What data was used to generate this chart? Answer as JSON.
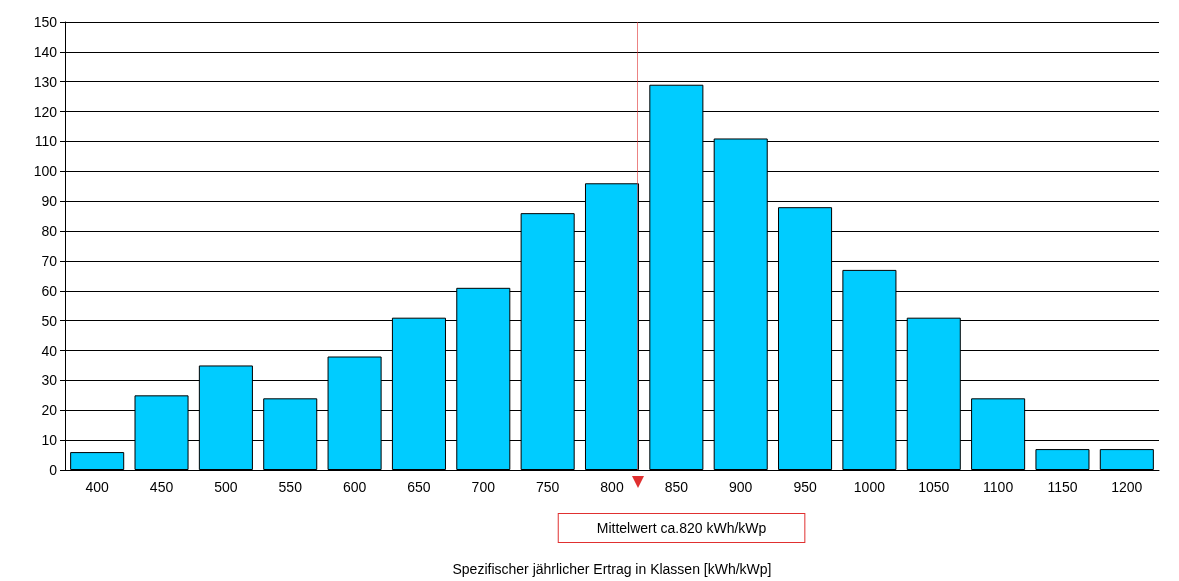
{
  "chart_data": {
    "type": "bar",
    "xlabel": "Spezifischer jährlicher Ertrag in Klassen [kWh/kWp]",
    "x": [
      400,
      450,
      500,
      550,
      600,
      650,
      700,
      750,
      800,
      850,
      900,
      950,
      1000,
      1050,
      1100,
      1150,
      1200
    ],
    "values": [
      6,
      25,
      35,
      24,
      38,
      51,
      61,
      86,
      96,
      129,
      111,
      88,
      67,
      51,
      24,
      7,
      7
    ],
    "color": "#00ccff",
    "xlim": [
      375,
      1225
    ],
    "xticks": [
      400,
      450,
      500,
      550,
      600,
      650,
      700,
      750,
      800,
      850,
      900,
      950,
      1000,
      1050,
      1100,
      1150,
      1200
    ],
    "ylim": [
      0,
      150
    ],
    "yticks": [
      0,
      10,
      20,
      30,
      40,
      50,
      60,
      70,
      80,
      90,
      100,
      110,
      120,
      130,
      140,
      150
    ],
    "grid": "y",
    "annotations": [
      "Mittelwert ca.820 kWh/kWp"
    ],
    "ref_lines": [
      {
        "axis": "x",
        "value": 820,
        "color": "#e03030",
        "line_style": "solid"
      }
    ]
  }
}
